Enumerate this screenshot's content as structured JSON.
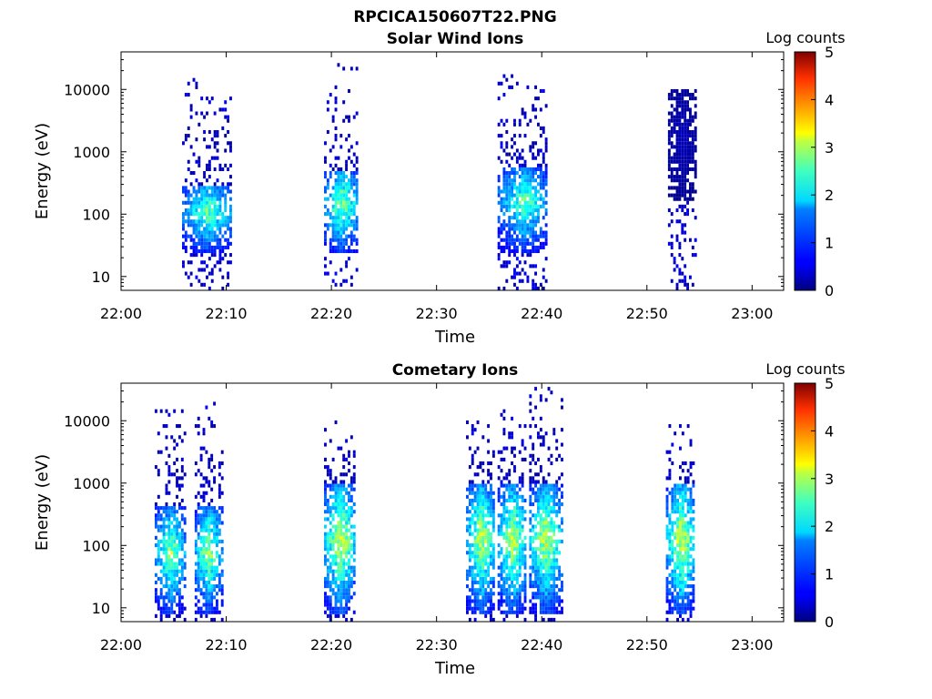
{
  "figure_title": "RPCICA150607T22.PNG",
  "chart_data": [
    {
      "type": "heatmap",
      "title": "Solar Wind Ions",
      "xlabel": "Time",
      "ylabel": "Energy (eV)",
      "x_ticks": [
        "22:00",
        "22:10",
        "22:20",
        "22:30",
        "22:40",
        "22:50",
        "23:00"
      ],
      "xlim_minutes_after_2200": [
        0,
        63
      ],
      "y_scale": "log",
      "ylim": [
        6,
        40000
      ],
      "y_ticks": [
        10,
        100,
        1000,
        10000
      ],
      "y_tick_labels": [
        "10",
        "100",
        "1000",
        "10000"
      ],
      "colorbar": {
        "label": "Log counts",
        "min": 0,
        "max": 5,
        "ticks": [
          "0",
          "1",
          "2",
          "3",
          "4",
          "5"
        ],
        "colormap": "jet"
      },
      "bursts": [
        {
          "start_min": 5.8,
          "end_min": 10.5,
          "peak_log_counts": 2.4,
          "core_energy_range_eV": [
            40,
            300
          ],
          "max_energy_eV": 20000
        },
        {
          "start_min": 19.3,
          "end_min": 22.5,
          "peak_log_counts": 2.6,
          "core_energy_range_eV": [
            40,
            500
          ],
          "max_energy_eV": 25000
        },
        {
          "start_min": 35.8,
          "end_min": 40.5,
          "peak_log_counts": 2.3,
          "core_energy_range_eV": [
            40,
            600
          ],
          "max_energy_eV": 20000
        },
        {
          "start_min": 52.0,
          "end_min": 54.5,
          "peak_log_counts": 0.3,
          "core_energy_range_eV": [
            300,
            10000
          ],
          "max_energy_eV": 10000
        }
      ]
    },
    {
      "type": "heatmap",
      "title": "Cometary Ions",
      "xlabel": "Time",
      "ylabel": "Energy (eV)",
      "x_ticks": [
        "22:00",
        "22:10",
        "22:20",
        "22:30",
        "22:40",
        "22:50",
        "23:00"
      ],
      "xlim_minutes_after_2200": [
        0,
        63
      ],
      "y_scale": "log",
      "ylim": [
        6,
        40000
      ],
      "y_ticks": [
        10,
        100,
        1000,
        10000
      ],
      "y_tick_labels": [
        "10",
        "100",
        "1000",
        "10000"
      ],
      "colorbar": {
        "label": "Log counts",
        "min": 0,
        "max": 5,
        "ticks": [
          "0",
          "1",
          "2",
          "3",
          "4",
          "5"
        ],
        "colormap": "jet"
      },
      "bursts": [
        {
          "start_min": 3.2,
          "end_min": 6.0,
          "peak_log_counts": 2.6,
          "core_energy_range_eV": [
            15,
            400
          ],
          "max_energy_eV": 15000
        },
        {
          "start_min": 7.0,
          "end_min": 9.5,
          "peak_log_counts": 2.7,
          "core_energy_range_eV": [
            15,
            400
          ],
          "max_energy_eV": 20000
        },
        {
          "start_min": 19.3,
          "end_min": 22.2,
          "peak_log_counts": 3.0,
          "core_energy_range_eV": [
            15,
            1000
          ],
          "max_energy_eV": 12000
        },
        {
          "start_min": 32.8,
          "end_min": 35.5,
          "peak_log_counts": 2.9,
          "core_energy_range_eV": [
            15,
            1000
          ],
          "max_energy_eV": 10000
        },
        {
          "start_min": 35.8,
          "end_min": 38.5,
          "peak_log_counts": 2.9,
          "core_energy_range_eV": [
            15,
            1000
          ],
          "max_energy_eV": 15000
        },
        {
          "start_min": 38.8,
          "end_min": 41.8,
          "peak_log_counts": 2.9,
          "core_energy_range_eV": [
            15,
            1000
          ],
          "max_energy_eV": 35000
        },
        {
          "start_min": 51.8,
          "end_min": 54.5,
          "peak_log_counts": 3.0,
          "core_energy_range_eV": [
            15,
            1000
          ],
          "max_energy_eV": 10000
        }
      ]
    }
  ]
}
